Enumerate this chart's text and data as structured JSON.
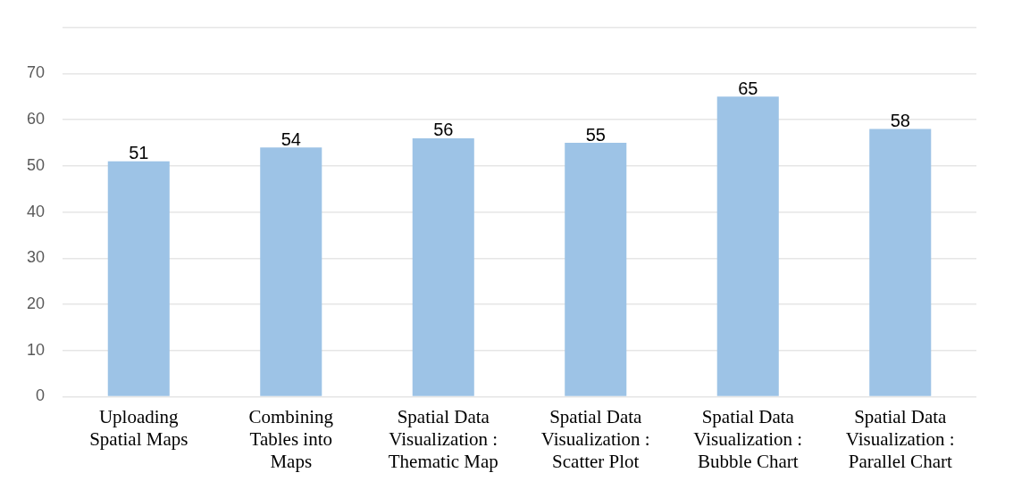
{
  "chart_data": {
    "type": "bar",
    "categories": [
      "Uploading Spatial Maps",
      "Combining Tables into Maps",
      "Spatial Data Visualization : Thematic Map",
      "Spatial Data Visualization : Scatter Plot",
      "Spatial Data Visualization : Bubble Chart",
      "Spatial Data Visualization : Parallel Chart"
    ],
    "values": [
      51,
      54,
      56,
      55,
      65,
      58
    ],
    "color": "#9dc3e6",
    "ylim": [
      0,
      80
    ],
    "yticks": [
      0,
      10,
      20,
      30,
      40,
      50,
      60,
      70,
      {
        "value": 80,
        "label": null
      }
    ],
    "grid": "y",
    "data_labels": true
  }
}
